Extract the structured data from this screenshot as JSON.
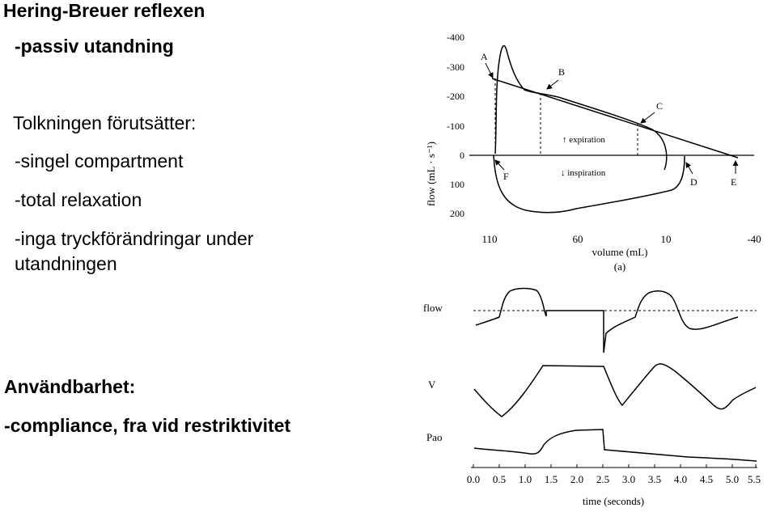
{
  "slide": {
    "title": "Hering-Breuer reflexen",
    "subtitle": "-passiv utandning",
    "premise_heading": "Tolkningen förutsätter:",
    "premises": [
      "-singel compartment",
      "-total relaxation",
      "-inga tryckförändringar under",
      "utandningen"
    ],
    "usability_heading": "Användbarhet:",
    "usability_item": "-compliance, fra vid restriktivitet"
  },
  "figure": {
    "top_panel": {
      "y_axis_label": "flow (mL · s⁻¹)",
      "y_ticks": [
        "-400",
        "-300",
        "-200",
        "-100",
        "0",
        "100",
        "200"
      ],
      "x_ticks": [
        "110",
        "60",
        "10",
        "-40"
      ],
      "x_axis_label": "volume (mL)",
      "panel_label": "(a)",
      "point_labels": [
        "A",
        "B",
        "C",
        "D",
        "E",
        "F"
      ],
      "expiration_label": "↑ expiration",
      "inspiration_label": "↓ inspiration"
    },
    "bottom_panel": {
      "trace_labels": [
        "flow",
        "V",
        "Pao"
      ],
      "x_ticks": [
        "0.0",
        "0.5",
        "1.0",
        "1.5",
        "2.0",
        "2.5",
        "3.0",
        "3.5",
        "4.0",
        "4.5",
        "5.0",
        "5.5"
      ],
      "x_axis_label": "time (seconds)"
    }
  }
}
